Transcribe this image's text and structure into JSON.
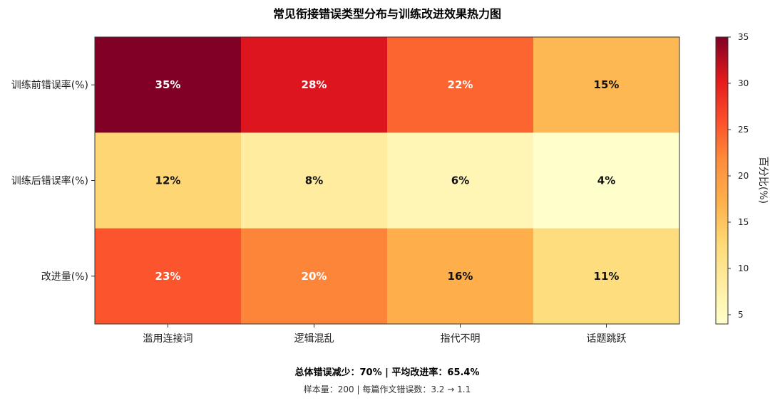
{
  "chart_data": {
    "type": "heatmap",
    "title": "常见衔接错误类型分布与训练改进效果热力图",
    "rows": [
      "训练前错误率(%)",
      "训练后错误率(%)",
      "改进量(%)"
    ],
    "columns": [
      "滥用连接词",
      "逻辑混乱",
      "指代不明",
      "话题跳跃"
    ],
    "values": [
      [
        35,
        28,
        22,
        15
      ],
      [
        12,
        8,
        6,
        4
      ],
      [
        23,
        20,
        16,
        11
      ]
    ],
    "cell_labels": [
      [
        "35%",
        "28%",
        "22%",
        "15%"
      ],
      [
        "12%",
        "8%",
        "6%",
        "4%"
      ],
      [
        "23%",
        "20%",
        "16%",
        "11%"
      ]
    ],
    "colorbar": {
      "label": "百分比(%)",
      "range": [
        4,
        35
      ],
      "ticks": [
        5,
        10,
        15,
        20,
        25,
        30,
        35
      ],
      "colormap": "YlOrRd"
    }
  },
  "footer": {
    "summary": "总体错误减少：70% | 平均改进率：65.4%",
    "detail": "样本量：200 | 每篇作文错误数：3.2 → 1.1"
  }
}
